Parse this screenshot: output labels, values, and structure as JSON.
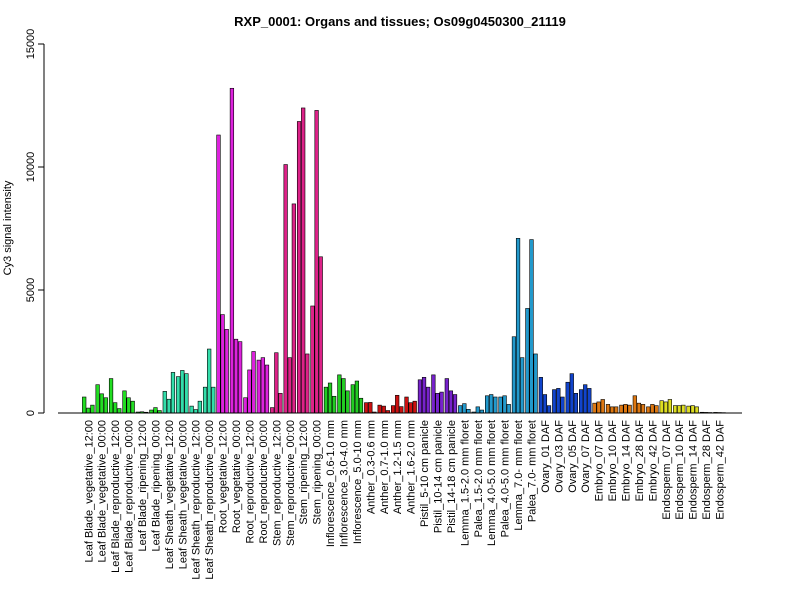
{
  "chart_data": {
    "type": "bar",
    "title": "RXP_0001: Organs and tissues; Os09g0450300_21119",
    "xlabel": "",
    "ylabel": "Cy3 signal intensity",
    "ylim": [
      0,
      15000
    ],
    "yticks": [
      0,
      5000,
      10000,
      15000
    ],
    "grid": false,
    "categories": [
      "Leaf Blade_vegetative_12:00",
      "Leaf Blade_vegetative_00:00",
      "Leaf Blade_reproductive_12:00",
      "Leaf Blade_reproductive_00:00",
      "Leaf Blade_ripening_12:00",
      "Leaf Blade_ripening_00:00",
      "Leaf Sheath_vegetative_12:00",
      "Leaf Sheath_vegetative_00:00",
      "Leaf Sheath_reproductive_12:00",
      "Leaf Sheath_reproductive_00:00",
      "Root_vegetative_12:00",
      "Root_vegetative_00:00",
      "Root_reproductive_12:00",
      "Root_reproductive_00:00",
      "Stem_reproductive_12:00",
      "Stem_reproductive_00:00",
      "Stem_ripening_12:00",
      "Stem_ripening_00:00",
      "Inflorescence_0.6-1.0 mm",
      "Inflorescence_3.0-4.0 mm",
      "Inflorescence_5.0-10 mm",
      "Anther_0.3-0.6 mm",
      "Anther_0.7-1.0 mm",
      "Anther_1.2-1.5 mm",
      "Anther_1.6-2.0 mm",
      "Pistil_5-10 cm panicle",
      "Pistil_10-14 cm panicle",
      "Pistil_14-18 cm panicle",
      "Lemma_1.5-2.0 mm floret",
      "Palea_1.5-2.0 mm floret",
      "Lemma_4.0-5.0 mm floret",
      "Palea_4.0-5.0 mm floret",
      "Lemma_7.0- mm floret",
      "Palea_7.0- mm floret",
      "Ovary_01 DAF",
      "Ovary_03 DAF",
      "Ovary_05 DAF",
      "Ovary_07 DAF",
      "Embryo_07 DAF",
      "Embryo_10 DAF",
      "Embryo_14 DAF",
      "Embryo_28 DAF",
      "Embryo_42 DAF",
      "Endosperm_07 DAF",
      "Endosperm_10 DAF",
      "Endosperm_14 DAF",
      "Endosperm_28 DAF",
      "Endosperm_42 DAF"
    ],
    "groups": [
      {
        "color": "#22dd22",
        "values": [
          650,
          200,
          320
        ]
      },
      {
        "color": "#22dd22",
        "values": [
          1150,
          780,
          620
        ]
      },
      {
        "color": "#22dd22",
        "values": [
          1400,
          420,
          180
        ]
      },
      {
        "color": "#22dd22",
        "values": [
          900,
          620,
          480
        ]
      },
      {
        "color": "#22dd22",
        "values": [
          40,
          50,
          30
        ]
      },
      {
        "color": "#22dd22",
        "values": [
          120,
          220,
          100
        ]
      },
      {
        "color": "#33ddaa",
        "values": [
          880,
          560,
          1650
        ]
      },
      {
        "color": "#33ddaa",
        "values": [
          1480,
          1730,
          1600
        ]
      },
      {
        "color": "#33ddaa",
        "values": [
          280,
          140,
          480
        ]
      },
      {
        "color": "#33ddaa",
        "values": [
          1050,
          2600,
          1050
        ]
      },
      {
        "color": "#dd22dd",
        "values": [
          11300,
          4000,
          3400
        ]
      },
      {
        "color": "#dd22dd",
        "values": [
          13200,
          3000,
          2900
        ]
      },
      {
        "color": "#dd22dd",
        "values": [
          620,
          1750,
          2500
        ]
      },
      {
        "color": "#dd22dd",
        "values": [
          2150,
          2250,
          1950
        ]
      },
      {
        "color": "#dd2288",
        "values": [
          220,
          2450,
          800
        ]
      },
      {
        "color": "#dd2288",
        "values": [
          10100,
          2250,
          8500
        ]
      },
      {
        "color": "#dd2288",
        "values": [
          11850,
          12400,
          2400
        ]
      },
      {
        "color": "#dd2288",
        "values": [
          4350,
          12300,
          6350
        ]
      },
      {
        "color": "#22cc22",
        "values": [
          1050,
          1220,
          680
        ]
      },
      {
        "color": "#22cc22",
        "values": [
          1550,
          1400,
          900
        ]
      },
      {
        "color": "#22cc22",
        "values": [
          1150,
          1300,
          600
        ]
      },
      {
        "color": "#cc1111",
        "values": [
          420,
          430,
          40
        ]
      },
      {
        "color": "#cc1111",
        "values": [
          320,
          280,
          100
        ]
      },
      {
        "color": "#cc1111",
        "values": [
          300,
          720,
          260
        ]
      },
      {
        "color": "#cc1111",
        "values": [
          650,
          420,
          480
        ]
      },
      {
        "color": "#7722cc",
        "values": [
          1350,
          1450,
          1050
        ]
      },
      {
        "color": "#7722cc",
        "values": [
          1550,
          800,
          850
        ]
      },
      {
        "color": "#7722cc",
        "values": [
          1400,
          900,
          750
        ]
      },
      {
        "color": "#2299cc",
        "values": [
          300,
          380,
          150
        ]
      },
      {
        "color": "#2299cc",
        "values": [
          40,
          250,
          120
        ]
      },
      {
        "color": "#2299cc",
        "values": [
          700,
          750,
          650
        ]
      },
      {
        "color": "#2299cc",
        "values": [
          650,
          700,
          350
        ]
      },
      {
        "color": "#2299cc",
        "values": [
          3100,
          7100,
          2250
        ]
      },
      {
        "color": "#2299cc",
        "values": [
          4250,
          7050,
          2400
        ]
      },
      {
        "color": "#1144cc",
        "values": [
          1450,
          750,
          300
        ]
      },
      {
        "color": "#1144cc",
        "values": [
          950,
          1000,
          650
        ]
      },
      {
        "color": "#1144cc",
        "values": [
          1250,
          1600,
          800
        ]
      },
      {
        "color": "#1144cc",
        "values": [
          950,
          1150,
          1000
        ]
      },
      {
        "color": "#dd7711",
        "values": [
          400,
          450,
          550
        ]
      },
      {
        "color": "#dd7711",
        "values": [
          350,
          250,
          250
        ]
      },
      {
        "color": "#dd7711",
        "values": [
          320,
          350,
          320
        ]
      },
      {
        "color": "#dd7711",
        "values": [
          700,
          400,
          350
        ]
      },
      {
        "color": "#dd7711",
        "values": [
          250,
          350,
          300
        ]
      },
      {
        "color": "#dddd22",
        "values": [
          500,
          450,
          550
        ]
      },
      {
        "color": "#dddd22",
        "values": [
          300,
          300,
          320
        ]
      },
      {
        "color": "#dddd22",
        "values": [
          280,
          300,
          250
        ]
      },
      {
        "color": "#dddd22",
        "values": [
          30,
          25,
          20
        ]
      },
      {
        "color": "#dddd22",
        "values": [
          25,
          20,
          15
        ]
      }
    ]
  }
}
